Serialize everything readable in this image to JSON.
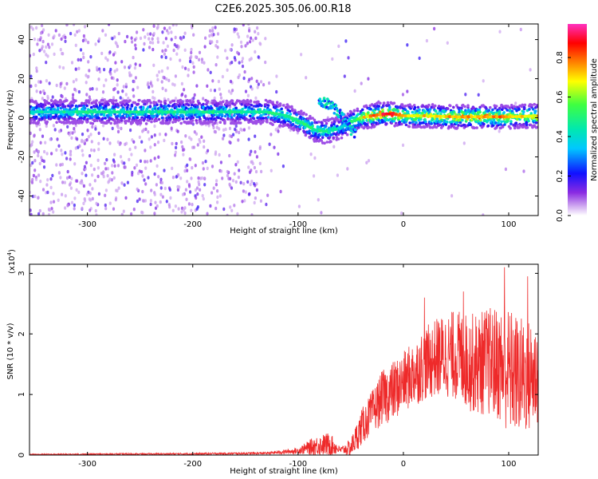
{
  "title": "C2E6.2025.305.06.00.R18",
  "chart_data": [
    {
      "type": "heatmap",
      "name": "spectrogram",
      "xlabel": "Height of straight line (km)",
      "ylabel": "Frequency (Hz)",
      "xlim": [
        -355,
        128
      ],
      "ylim": [
        -50,
        48
      ],
      "x_ticks": [
        -300,
        -200,
        -100,
        0,
        100
      ],
      "x_tick_labels": [
        "-300",
        "-200",
        "-100",
        "0",
        "100"
      ],
      "y_ticks": [
        40,
        20,
        0,
        -20,
        -40
      ],
      "y_tick_labels": [
        "40",
        "20",
        "0",
        "-20",
        "-40"
      ],
      "colorbar": {
        "label": "Normalized spectral amplitude",
        "range": [
          0,
          0.97
        ],
        "ticks": [
          0.0,
          0.2,
          0.4,
          0.6,
          0.8
        ],
        "tick_labels": [
          "0.0",
          "0.2",
          "0.4",
          "0.6",
          "0.8"
        ]
      },
      "ridge": {
        "x": [
          -355,
          -300,
          -250,
          -200,
          -150,
          -130,
          -110,
          -95,
          -85,
          -75,
          -65,
          -55,
          -50,
          -45,
          -40,
          -30,
          -20,
          -10,
          0,
          20,
          50,
          80,
          100,
          128
        ],
        "freq_hz": [
          3,
          3,
          3,
          3,
          3,
          3,
          1,
          -3,
          -6,
          -7,
          -6,
          -4,
          -2,
          -1,
          0,
          1,
          2,
          2,
          1,
          1,
          0.5,
          0.5,
          0.5,
          1
        ],
        "peak_amplitude": [
          0.45,
          0.5,
          0.5,
          0.5,
          0.5,
          0.5,
          0.55,
          0.55,
          0.55,
          0.5,
          0.45,
          0.45,
          0.5,
          0.6,
          0.7,
          0.85,
          0.9,
          0.9,
          0.75,
          0.75,
          0.8,
          0.85,
          0.8,
          0.75
        ]
      },
      "secondary_track": {
        "x": [
          -80,
          -70,
          -62,
          -55,
          -50,
          -45
        ],
        "freq_hz": [
          8,
          7,
          3,
          -2,
          -6,
          -8
        ]
      }
    },
    {
      "type": "line",
      "name": "snr",
      "color": "#ee2a2a",
      "xlabel": "Height of straight line (km)",
      "ylabel": "SNR (10 * v/v)",
      "y_multiplier_label": "(x10",
      "y_multiplier_exp": "4",
      "y_multiplier_close": ")",
      "xlim": [
        -355,
        128
      ],
      "ylim": [
        0,
        3.15
      ],
      "x_ticks": [
        -300,
        -200,
        -100,
        0,
        100
      ],
      "x_tick_labels": [
        "-300",
        "-200",
        "-100",
        "0",
        "100"
      ],
      "y_ticks": [
        0,
        1,
        2,
        3
      ],
      "y_tick_labels": [
        "0",
        "1",
        "2",
        "3"
      ],
      "envelope": {
        "x": [
          -355,
          -200,
          -130,
          -100,
          -85,
          -70,
          -60,
          -50,
          -40,
          -30,
          -20,
          -10,
          0,
          10,
          20,
          30,
          40,
          50,
          60,
          70,
          80,
          90,
          100,
          110,
          120,
          128
        ],
        "mean": [
          0.01,
          0.02,
          0.03,
          0.07,
          0.15,
          0.18,
          0.08,
          0.12,
          0.45,
          0.7,
          0.95,
          1.05,
          1.2,
          1.35,
          1.5,
          1.6,
          1.65,
          1.65,
          1.55,
          1.5,
          1.55,
          1.5,
          1.4,
          1.3,
          1.3,
          1.35
        ],
        "spread": [
          0.01,
          0.015,
          0.02,
          0.05,
          0.15,
          0.2,
          0.05,
          0.15,
          0.3,
          0.35,
          0.45,
          0.5,
          0.5,
          0.55,
          0.6,
          0.65,
          0.7,
          0.75,
          0.8,
          0.85,
          0.9,
          0.95,
          1.05,
          1.0,
          0.95,
          0.9
        ]
      },
      "peak_points": [
        {
          "x": 96,
          "y": 3.1
        },
        {
          "x": 20,
          "y": 2.6
        },
        {
          "x": 57,
          "y": 2.7
        },
        {
          "x": 118,
          "y": 2.95
        }
      ]
    }
  ]
}
